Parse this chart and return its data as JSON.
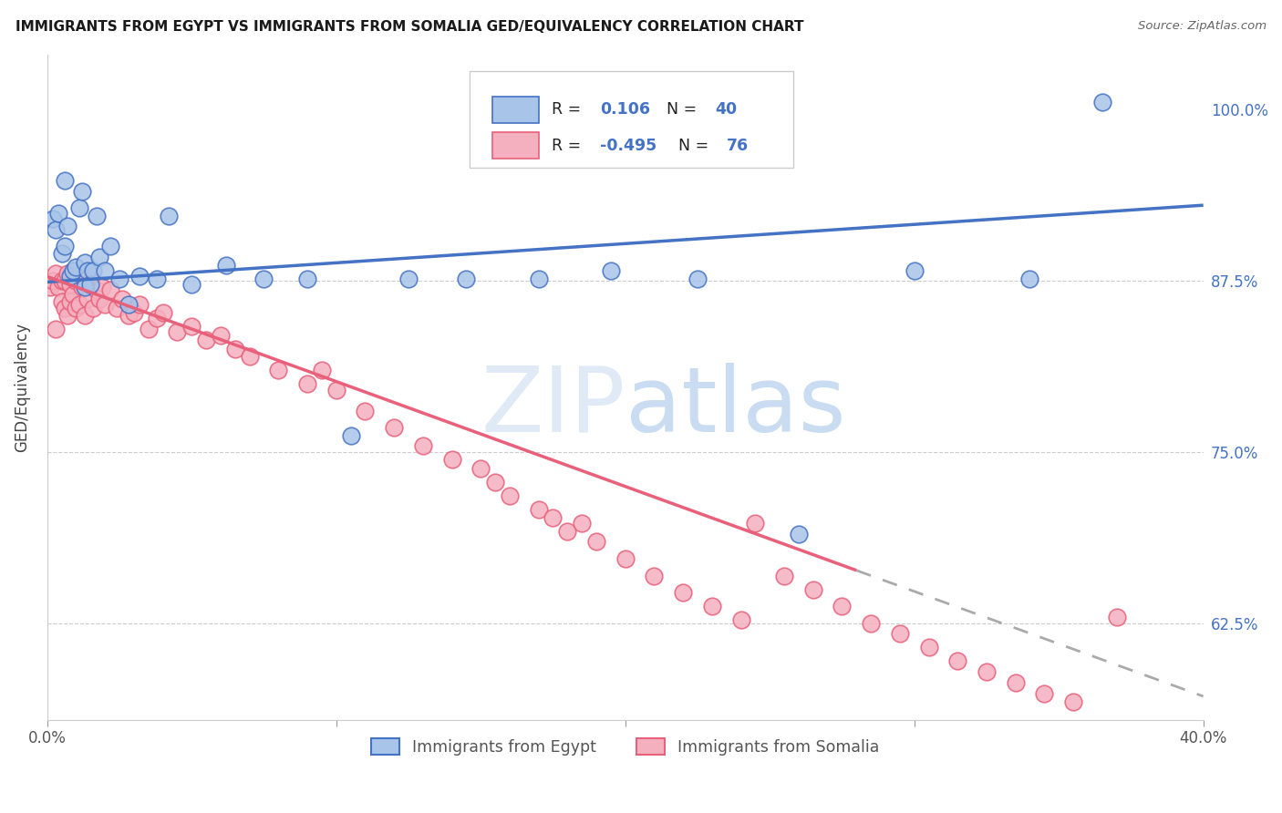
{
  "title": "IMMIGRANTS FROM EGYPT VS IMMIGRANTS FROM SOMALIA GED/EQUIVALENCY CORRELATION CHART",
  "source": "Source: ZipAtlas.com",
  "ylabel": "GED/Equivalency",
  "yticks": [
    0.625,
    0.75,
    0.875,
    1.0
  ],
  "ytick_labels": [
    "62.5%",
    "75.0%",
    "87.5%",
    "100.0%"
  ],
  "xlim": [
    0.0,
    0.4
  ],
  "ylim": [
    0.555,
    1.04
  ],
  "color_egypt": "#a8c4e8",
  "color_somalia": "#f5b0bf",
  "color_egypt_line": "#4472c4",
  "color_somalia_line": "#e8607a",
  "color_text_blue": "#4472c4",
  "color_watermark": "#dde8f5",
  "egypt_line_x0": 0.0,
  "egypt_line_y0": 0.874,
  "egypt_line_x1": 0.4,
  "egypt_line_y1": 0.93,
  "somalia_line_x0": 0.0,
  "somalia_line_y0": 0.878,
  "somalia_line_solid_x1": 0.28,
  "somalia_line_dash_x1": 0.4,
  "somalia_line_y1": 0.572,
  "egypt_scatter_x": [
    0.002,
    0.003,
    0.004,
    0.005,
    0.006,
    0.006,
    0.007,
    0.008,
    0.009,
    0.01,
    0.011,
    0.012,
    0.013,
    0.013,
    0.014,
    0.015,
    0.016,
    0.017,
    0.018,
    0.02,
    0.022,
    0.025,
    0.028,
    0.032,
    0.038,
    0.042,
    0.05,
    0.062,
    0.075,
    0.09,
    0.105,
    0.125,
    0.145,
    0.17,
    0.195,
    0.225,
    0.26,
    0.3,
    0.34,
    0.365
  ],
  "egypt_scatter_y": [
    0.92,
    0.912,
    0.924,
    0.895,
    0.9,
    0.948,
    0.915,
    0.878,
    0.882,
    0.885,
    0.928,
    0.94,
    0.888,
    0.87,
    0.882,
    0.872,
    0.882,
    0.922,
    0.892,
    0.882,
    0.9,
    0.876,
    0.858,
    0.878,
    0.876,
    0.922,
    0.872,
    0.886,
    0.876,
    0.876,
    0.762,
    0.876,
    0.876,
    0.876,
    0.882,
    0.876,
    0.69,
    0.882,
    0.876,
    1.005
  ],
  "somalia_scatter_x": [
    0.001,
    0.002,
    0.003,
    0.003,
    0.004,
    0.005,
    0.005,
    0.006,
    0.006,
    0.007,
    0.007,
    0.008,
    0.008,
    0.009,
    0.01,
    0.01,
    0.011,
    0.012,
    0.013,
    0.013,
    0.014,
    0.015,
    0.016,
    0.017,
    0.018,
    0.019,
    0.02,
    0.022,
    0.024,
    0.026,
    0.028,
    0.03,
    0.032,
    0.035,
    0.038,
    0.04,
    0.045,
    0.05,
    0.055,
    0.06,
    0.065,
    0.07,
    0.08,
    0.09,
    0.095,
    0.1,
    0.11,
    0.12,
    0.13,
    0.14,
    0.15,
    0.155,
    0.16,
    0.17,
    0.175,
    0.18,
    0.185,
    0.19,
    0.2,
    0.21,
    0.22,
    0.23,
    0.24,
    0.245,
    0.255,
    0.265,
    0.275,
    0.285,
    0.295,
    0.305,
    0.315,
    0.325,
    0.335,
    0.345,
    0.355,
    0.37
  ],
  "somalia_scatter_y": [
    0.87,
    0.875,
    0.84,
    0.88,
    0.87,
    0.86,
    0.875,
    0.855,
    0.875,
    0.88,
    0.85,
    0.872,
    0.86,
    0.865,
    0.875,
    0.855,
    0.858,
    0.87,
    0.875,
    0.85,
    0.862,
    0.875,
    0.855,
    0.868,
    0.862,
    0.87,
    0.858,
    0.868,
    0.855,
    0.862,
    0.85,
    0.852,
    0.858,
    0.84,
    0.848,
    0.852,
    0.838,
    0.842,
    0.832,
    0.835,
    0.825,
    0.82,
    0.81,
    0.8,
    0.81,
    0.795,
    0.78,
    0.768,
    0.755,
    0.745,
    0.738,
    0.728,
    0.718,
    0.708,
    0.702,
    0.692,
    0.698,
    0.685,
    0.672,
    0.66,
    0.648,
    0.638,
    0.628,
    0.698,
    0.66,
    0.65,
    0.638,
    0.625,
    0.618,
    0.608,
    0.598,
    0.59,
    0.582,
    0.574,
    0.568,
    0.63
  ]
}
